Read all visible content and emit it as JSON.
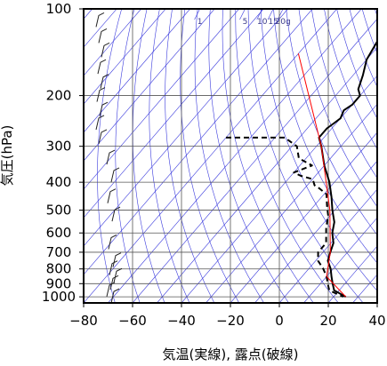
{
  "chart_data": {
    "type": "line",
    "xlabel": "気温(実線), 露点(破線)",
    "ylabel": "気圧(hPa)",
    "xlim": [
      -80,
      40
    ],
    "ylim": [
      1050,
      100
    ],
    "y_scale": "log",
    "x_ticks": [
      {
        "value": -80,
        "label": "−80"
      },
      {
        "value": -60,
        "label": "−60"
      },
      {
        "value": -40,
        "label": "−40"
      },
      {
        "value": -20,
        "label": "−20"
      },
      {
        "value": 0,
        "label": "0"
      },
      {
        "value": 20,
        "label": "20"
      },
      {
        "value": 40,
        "label": "40"
      }
    ],
    "y_ticks": [
      {
        "value": 100,
        "label": "100"
      },
      {
        "value": 200,
        "label": "200"
      },
      {
        "value": 300,
        "label": "300"
      },
      {
        "value": 400,
        "label": "400"
      },
      {
        "value": 500,
        "label": "500"
      },
      {
        "value": 600,
        "label": "600"
      },
      {
        "value": 700,
        "label": "700"
      },
      {
        "value": 800,
        "label": "800"
      },
      {
        "value": 900,
        "label": "900"
      },
      {
        "value": 1000,
        "label": "1000"
      }
    ],
    "mixing_ratio_labels": [
      {
        "label": "1",
        "temp": -32.5
      },
      {
        "label": "5",
        "temp": -14
      },
      {
        "label": "10",
        "temp": -7
      },
      {
        "label": "15",
        "temp": -2.5
      },
      {
        "label": "20g",
        "temp": 1.5
      }
    ],
    "series": [
      {
        "style": "solid",
        "color": "#000000",
        "points": [
          [
            100,
            -60
          ],
          [
            110,
            -59
          ],
          [
            120,
            -55
          ],
          [
            130,
            -52
          ],
          [
            150,
            -50
          ],
          [
            170,
            -46
          ],
          [
            190,
            -43
          ],
          [
            200,
            -40
          ],
          [
            215,
            -40
          ],
          [
            225,
            -41.5
          ],
          [
            240,
            -40
          ],
          [
            250,
            -41
          ],
          [
            260,
            -42
          ],
          [
            280,
            -42
          ],
          [
            300,
            -38
          ],
          [
            350,
            -30
          ],
          [
            400,
            -22
          ],
          [
            450,
            -16
          ],
          [
            500,
            -11
          ],
          [
            550,
            -6
          ],
          [
            600,
            -3
          ],
          [
            650,
            1
          ],
          [
            700,
            3
          ],
          [
            750,
            5
          ],
          [
            800,
            9
          ],
          [
            850,
            12
          ],
          [
            900,
            15
          ],
          [
            950,
            18
          ],
          [
            1000,
            25
          ]
        ]
      },
      {
        "style": "dashed",
        "color": "#000000",
        "points": [
          [
            280,
            -80
          ],
          [
            280,
            -56
          ],
          [
            300,
            -48
          ],
          [
            330,
            -43
          ],
          [
            350,
            -35
          ],
          [
            370,
            -40
          ],
          [
            380,
            -36
          ],
          [
            390,
            -30
          ],
          [
            410,
            -27
          ],
          [
            420,
            -24
          ],
          [
            440,
            -19
          ],
          [
            480,
            -15
          ],
          [
            520,
            -11
          ],
          [
            580,
            -7
          ],
          [
            650,
            -2
          ],
          [
            700,
            -2
          ],
          [
            750,
            1
          ],
          [
            800,
            6
          ],
          [
            850,
            10
          ],
          [
            900,
            13
          ],
          [
            950,
            16
          ],
          [
            1000,
            24
          ]
        ]
      },
      {
        "style": "solid",
        "color": "#ff0000",
        "points": [
          [
            143,
            -80
          ],
          [
            300,
            -38
          ],
          [
            500,
            -12
          ],
          [
            700,
            3
          ],
          [
            850,
            10
          ],
          [
            1000,
            25
          ]
        ]
      }
    ],
    "wind_barbs_drawn": true,
    "grid": true
  }
}
